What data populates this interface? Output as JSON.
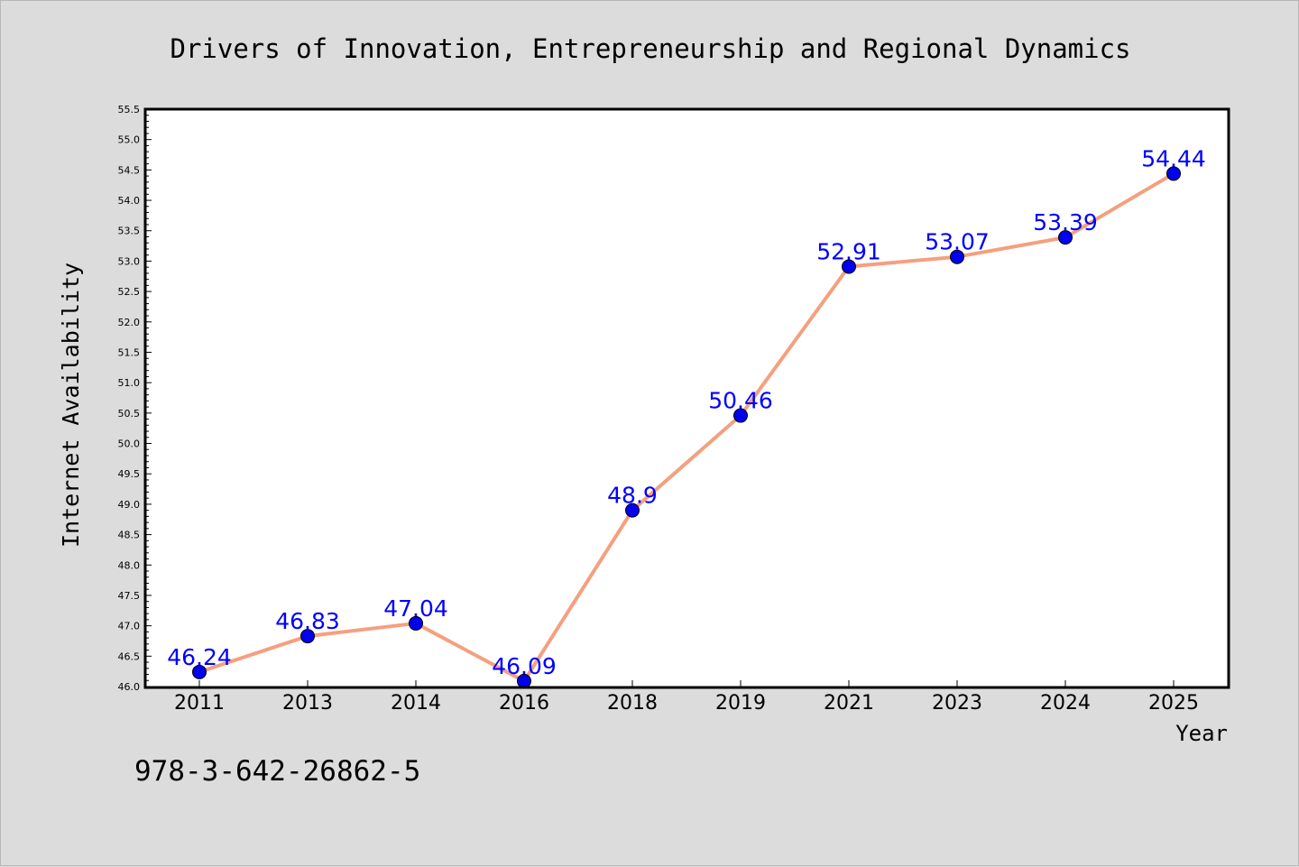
{
  "chart_data": {
    "type": "line",
    "title": "Drivers of Innovation, Entrepreneurship and Regional Dynamics",
    "xlabel": "Year",
    "ylabel": "Internet Availability",
    "categories": [
      "2011",
      "2013",
      "2014",
      "2016",
      "2018",
      "2019",
      "2021",
      "2023",
      "2024",
      "2025"
    ],
    "series": [
      {
        "values": [
          46.24,
          46.83,
          47.04,
          46.09,
          48.9,
          50.46,
          52.91,
          53.07,
          53.39,
          54.44
        ],
        "data_labels": [
          "46.24",
          "46.83",
          "47.04",
          "46.09",
          "48.9",
          "50.46",
          "52.91",
          "53.07",
          "53.39",
          "54.44"
        ]
      }
    ],
    "ylim": [
      46.0,
      55.5
    ],
    "ytick_step": 0.5,
    "grid": false,
    "legend": "none",
    "colors": {
      "line": "#f4a07f",
      "marker": "#0000ee",
      "label": "#0000ff",
      "background": "#dcdcdc",
      "plot_background": "#ffffff"
    }
  },
  "footer_text": "978-3-642-26862-5"
}
